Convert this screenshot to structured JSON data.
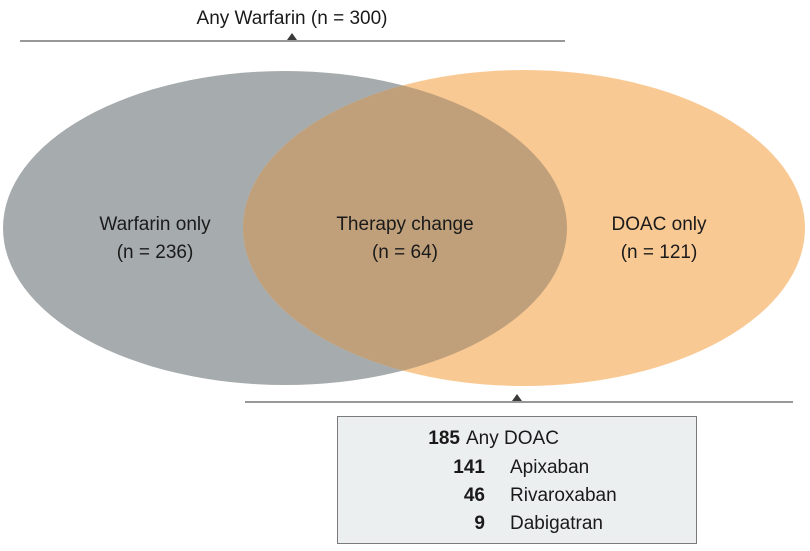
{
  "top_bracket": {
    "label": "Any Warfarin (n = 300)"
  },
  "regions": {
    "warfarin_only": {
      "title": "Warfarin only",
      "count": "(n = 236)"
    },
    "therapy_change": {
      "title": "Therapy change",
      "count": "(n = 64)"
    },
    "doac_only": {
      "title": "DOAC only",
      "count": "(n = 121)"
    }
  },
  "colors": {
    "warfarin_fill": "#a6abad",
    "doac_fill": "#f9c994",
    "overlap_fill": "#c0a07b",
    "bracket_line": "#5a5a5a"
  },
  "doac_breakdown": {
    "total": {
      "value": "185",
      "label": "Any DOAC"
    },
    "items": [
      {
        "value": "141",
        "label": "Apixaban"
      },
      {
        "value": "46",
        "label": "Rivaroxaban"
      },
      {
        "value": "9",
        "label": "Dabigatran"
      }
    ]
  }
}
